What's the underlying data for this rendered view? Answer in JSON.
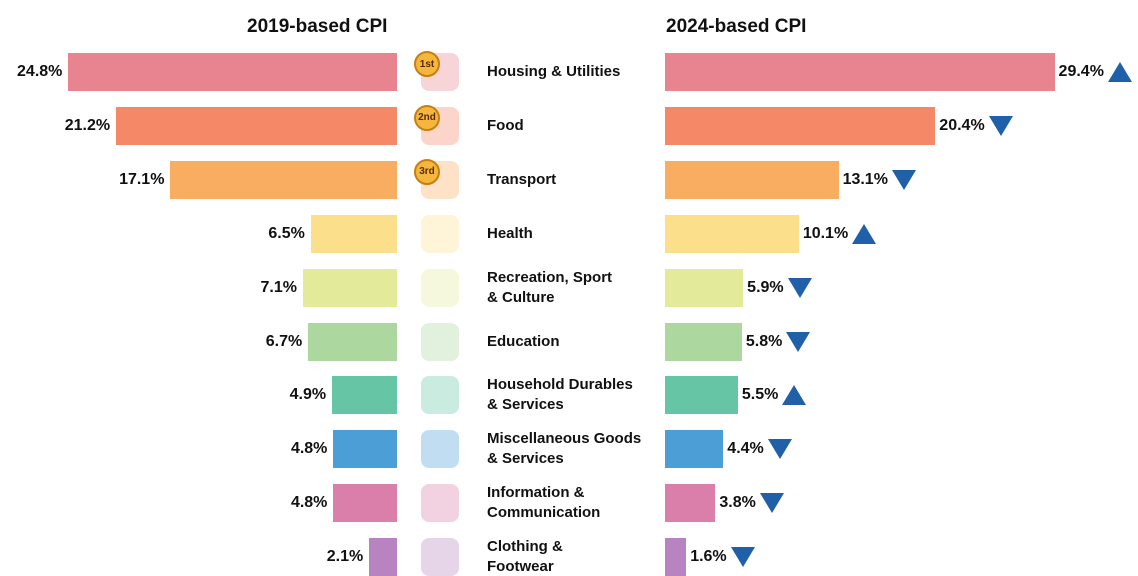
{
  "chart_data": {
    "type": "bar",
    "orientation": "horizontal",
    "categories": [
      "Housing & Utilities",
      "Food",
      "Transport",
      "Health",
      "Recreation, Sport\n& Culture",
      "Education",
      "Household Durables\n& Services",
      "Miscellaneous Goods\n& Services",
      "Information &\nCommunication",
      "Clothing &\nFootwear"
    ],
    "ranks": [
      "1st",
      "2nd",
      "3rd",
      null,
      null,
      null,
      null,
      null,
      null,
      null
    ],
    "colors": [
      "#e8848f",
      "#f58866",
      "#f9ad60",
      "#fbdf8b",
      "#e3eb9a",
      "#acd8a0",
      "#66c5a5",
      "#4b9fd6",
      "#d97fa9",
      "#b784c1"
    ],
    "series": [
      {
        "name": "2019-based CPI",
        "side": "left",
        "values": [
          24.8,
          21.2,
          17.1,
          6.5,
          7.1,
          6.7,
          4.9,
          4.8,
          4.8,
          2.1
        ],
        "value_labels": [
          "24.8%",
          "21.2%",
          "17.1%",
          "6.5%",
          "7.1%",
          "6.7%",
          "4.9%",
          "4.8%",
          "4.8%",
          "2.1%"
        ]
      },
      {
        "name": "2024-based CPI",
        "side": "right",
        "values": [
          29.4,
          20.4,
          13.1,
          10.1,
          5.9,
          5.8,
          5.5,
          4.4,
          3.8,
          1.6
        ],
        "value_labels": [
          "29.4%",
          "20.4%",
          "13.1%",
          "10.1%",
          "5.9%",
          "5.8%",
          "5.5%",
          "4.4%",
          "3.8%",
          "1.6%"
        ],
        "changes": [
          "up",
          "down",
          "down",
          "up",
          "down",
          "down",
          "up",
          "down",
          "down",
          "down"
        ],
        "change_color": "#2060a8"
      }
    ]
  }
}
